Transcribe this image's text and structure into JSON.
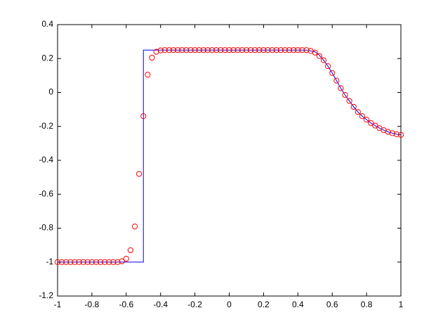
{
  "chart_data": {
    "type": "line",
    "series": [
      {
        "color": "#0000ff",
        "marker": "none",
        "x": [
          -1,
          -0.5,
          -0.5,
          0.45,
          0.5,
          0.525,
          0.55,
          0.575,
          0.6,
          0.625,
          0.65,
          0.675,
          0.7,
          0.725,
          0.75,
          0.775,
          0.8,
          0.825,
          0.85,
          0.875,
          0.9,
          0.925,
          0.95,
          0.975,
          1
        ],
        "values": [
          -1,
          -1,
          0.25,
          0.25,
          0.24,
          0.22,
          0.19,
          0.155,
          0.115,
          0.07,
          0.025,
          -0.015,
          -0.05,
          -0.085,
          -0.115,
          -0.14,
          -0.16,
          -0.18,
          -0.195,
          -0.21,
          -0.222,
          -0.232,
          -0.24,
          -0.246,
          -0.25
        ]
      },
      {
        "color": "#ff0000",
        "marker": "circle",
        "x": [
          -1,
          -0.975,
          -0.95,
          -0.925,
          -0.9,
          -0.875,
          -0.85,
          -0.825,
          -0.8,
          -0.775,
          -0.75,
          -0.725,
          -0.7,
          -0.675,
          -0.65,
          -0.625,
          -0.6,
          -0.575,
          -0.55,
          -0.525,
          -0.5,
          -0.475,
          -0.45,
          -0.425,
          -0.4,
          -0.375,
          -0.35,
          -0.325,
          -0.3,
          -0.275,
          -0.25,
          -0.225,
          -0.2,
          -0.175,
          -0.15,
          -0.125,
          -0.1,
          -0.075,
          -0.05,
          -0.025,
          0,
          0.025,
          0.05,
          0.075,
          0.1,
          0.125,
          0.15,
          0.175,
          0.2,
          0.225,
          0.25,
          0.275,
          0.3,
          0.325,
          0.35,
          0.375,
          0.4,
          0.425,
          0.45,
          0.475,
          0.5,
          0.525,
          0.55,
          0.575,
          0.6,
          0.625,
          0.65,
          0.675,
          0.7,
          0.725,
          0.75,
          0.775,
          0.8,
          0.825,
          0.85,
          0.875,
          0.9,
          0.925,
          0.95,
          0.975,
          1
        ],
        "values": [
          -1,
          -1,
          -1,
          -1,
          -1,
          -1,
          -1,
          -1,
          -1,
          -1,
          -1,
          -1,
          -1,
          -1,
          -1,
          -0.995,
          -0.98,
          -0.93,
          -0.79,
          -0.48,
          -0.14,
          0.105,
          0.205,
          0.24,
          0.248,
          0.25,
          0.25,
          0.25,
          0.25,
          0.25,
          0.25,
          0.25,
          0.25,
          0.25,
          0.25,
          0.25,
          0.25,
          0.25,
          0.25,
          0.25,
          0.25,
          0.25,
          0.25,
          0.25,
          0.25,
          0.25,
          0.25,
          0.25,
          0.25,
          0.25,
          0.25,
          0.25,
          0.25,
          0.25,
          0.25,
          0.25,
          0.25,
          0.25,
          0.25,
          0.245,
          0.235,
          0.215,
          0.19,
          0.155,
          0.115,
          0.07,
          0.025,
          -0.015,
          -0.05,
          -0.085,
          -0.115,
          -0.14,
          -0.16,
          -0.18,
          -0.195,
          -0.21,
          -0.222,
          -0.232,
          -0.24,
          -0.246,
          -0.25
        ]
      }
    ],
    "xlim": [
      -1,
      1
    ],
    "xticks": [
      -1,
      -0.8,
      -0.6,
      -0.4,
      -0.2,
      0,
      0.2,
      0.4,
      0.6,
      0.8,
      1
    ],
    "ylim": [
      -1.2,
      0.4
    ],
    "yticks": [
      -1.2,
      -1,
      -0.8,
      -0.6,
      -0.4,
      -0.2,
      0,
      0.2,
      0.4
    ]
  }
}
